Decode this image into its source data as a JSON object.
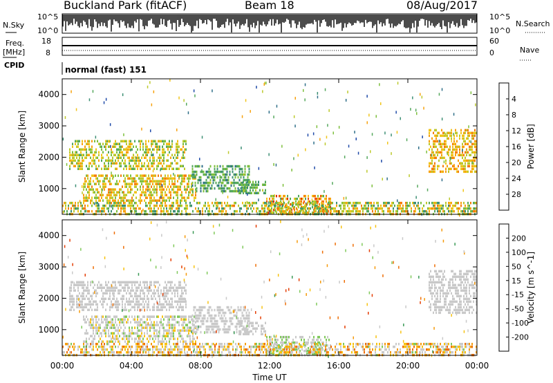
{
  "header": {
    "station": "Buckland Park (fitACF)",
    "beam": "Beam 18",
    "date": "08/Aug/2017"
  },
  "labels": {
    "nsky": "N.Sky",
    "nsearch": "N.Search",
    "freq_line1": "Freq.",
    "freq_line2": "[MHz]",
    "nave": "Nave",
    "cpid": "CPID",
    "cpid_text": "normal (fast) 151",
    "noise_ticks": [
      "10^5",
      "10^0"
    ],
    "freq_ticks": [
      "18",
      "8"
    ],
    "nave_ticks": [
      "60",
      "0"
    ]
  },
  "colors": {
    "power": [
      "#0000ff",
      "#1f4aa8",
      "#2e6e88",
      "#3d8f74",
      "#55a85c",
      "#7dbf3c",
      "#bcc92b",
      "#f0c419",
      "#f7a10c",
      "#f57c06",
      "#ef5203",
      "#e62a01",
      "#dd0000"
    ],
    "velocity": [
      "#1f1fa6",
      "#2457b6",
      "#2f7d7a",
      "#3a9a55",
      "#7fc95a",
      "#c9c9c9",
      "#c9c9c9",
      "#f7c20f",
      "#f59a0a",
      "#ee6e06",
      "#e43e03",
      "#d80000"
    ]
  },
  "chart_data": [
    {
      "type": "heatmap",
      "title": "Power",
      "ylabel": "Slant Range [km]",
      "xlabel": "",
      "x_ticks": [
        "00:00",
        "04:00",
        "08:00",
        "12:00",
        "16:00",
        "20:00",
        "00:00"
      ],
      "x_range_hours": [
        0,
        24
      ],
      "y_ticks": [
        1000,
        2000,
        3000,
        4000
      ],
      "ylim": [
        180,
        4500
      ],
      "colorbar": {
        "label": "Power [dB]",
        "ticks": [
          "4",
          "8",
          "12",
          "16",
          "20",
          "24",
          "28"
        ],
        "range": [
          0,
          30
        ]
      },
      "regions": [
        {
          "t": [
            0.4,
            7.2
          ],
          "r": [
            1650,
            2550
          ],
          "v": [
            10,
            20
          ]
        },
        {
          "t": [
            1.2,
            7.7
          ],
          "r": [
            650,
            1450
          ],
          "v": [
            12,
            22
          ]
        },
        {
          "t": [
            7.5,
            10.8
          ],
          "r": [
            950,
            1750
          ],
          "v": [
            6,
            14
          ]
        },
        {
          "t": [
            10.2,
            11.8
          ],
          "r": [
            850,
            1250
          ],
          "v": [
            8,
            14
          ]
        },
        {
          "t": [
            11.8,
            15.5
          ],
          "r": [
            250,
            800
          ],
          "v": [
            10,
            26
          ]
        },
        {
          "t": [
            0.0,
            24.0
          ],
          "r": [
            180,
            580
          ],
          "v": [
            8,
            22
          ]
        },
        {
          "t": [
            21.2,
            24.0
          ],
          "r": [
            1550,
            2900
          ],
          "v": [
            14,
            22
          ]
        }
      ]
    },
    {
      "type": "heatmap",
      "title": "Velocity",
      "ylabel": "Slant Range [km]",
      "xlabel": "Time UT",
      "x_ticks": [
        "00:00",
        "04:00",
        "08:00",
        "12:00",
        "16:00",
        "20:00",
        "00:00"
      ],
      "x_range_hours": [
        0,
        24
      ],
      "y_ticks": [
        1000,
        2000,
        3000,
        4000
      ],
      "ylim": [
        180,
        4500
      ],
      "colorbar": {
        "label": "Velocity [m s^-1]",
        "ticks": [
          "200",
          "100",
          "50",
          "15",
          "-15",
          "-50",
          "-100",
          "-200"
        ],
        "range": [
          -250,
          250
        ]
      },
      "regions": [
        {
          "t": [
            0.4,
            7.2
          ],
          "r": [
            1650,
            2550
          ],
          "v": [
            -40,
            40
          ]
        },
        {
          "t": [
            1.2,
            7.7
          ],
          "r": [
            650,
            1450
          ],
          "v": [
            -60,
            60
          ]
        },
        {
          "t": [
            7.5,
            10.8
          ],
          "r": [
            950,
            1750
          ],
          "v": [
            -20,
            20
          ]
        },
        {
          "t": [
            10.2,
            11.8
          ],
          "r": [
            850,
            1250
          ],
          "v": [
            -10,
            10
          ]
        },
        {
          "t": [
            11.8,
            15.5
          ],
          "r": [
            250,
            800
          ],
          "v": [
            20,
            60
          ]
        },
        {
          "t": [
            0.0,
            24.0
          ],
          "r": [
            180,
            580
          ],
          "v": [
            -150,
            50
          ]
        },
        {
          "t": [
            21.2,
            24.0
          ],
          "r": [
            1550,
            2900
          ],
          "v": [
            -30,
            30
          ]
        }
      ]
    }
  ]
}
